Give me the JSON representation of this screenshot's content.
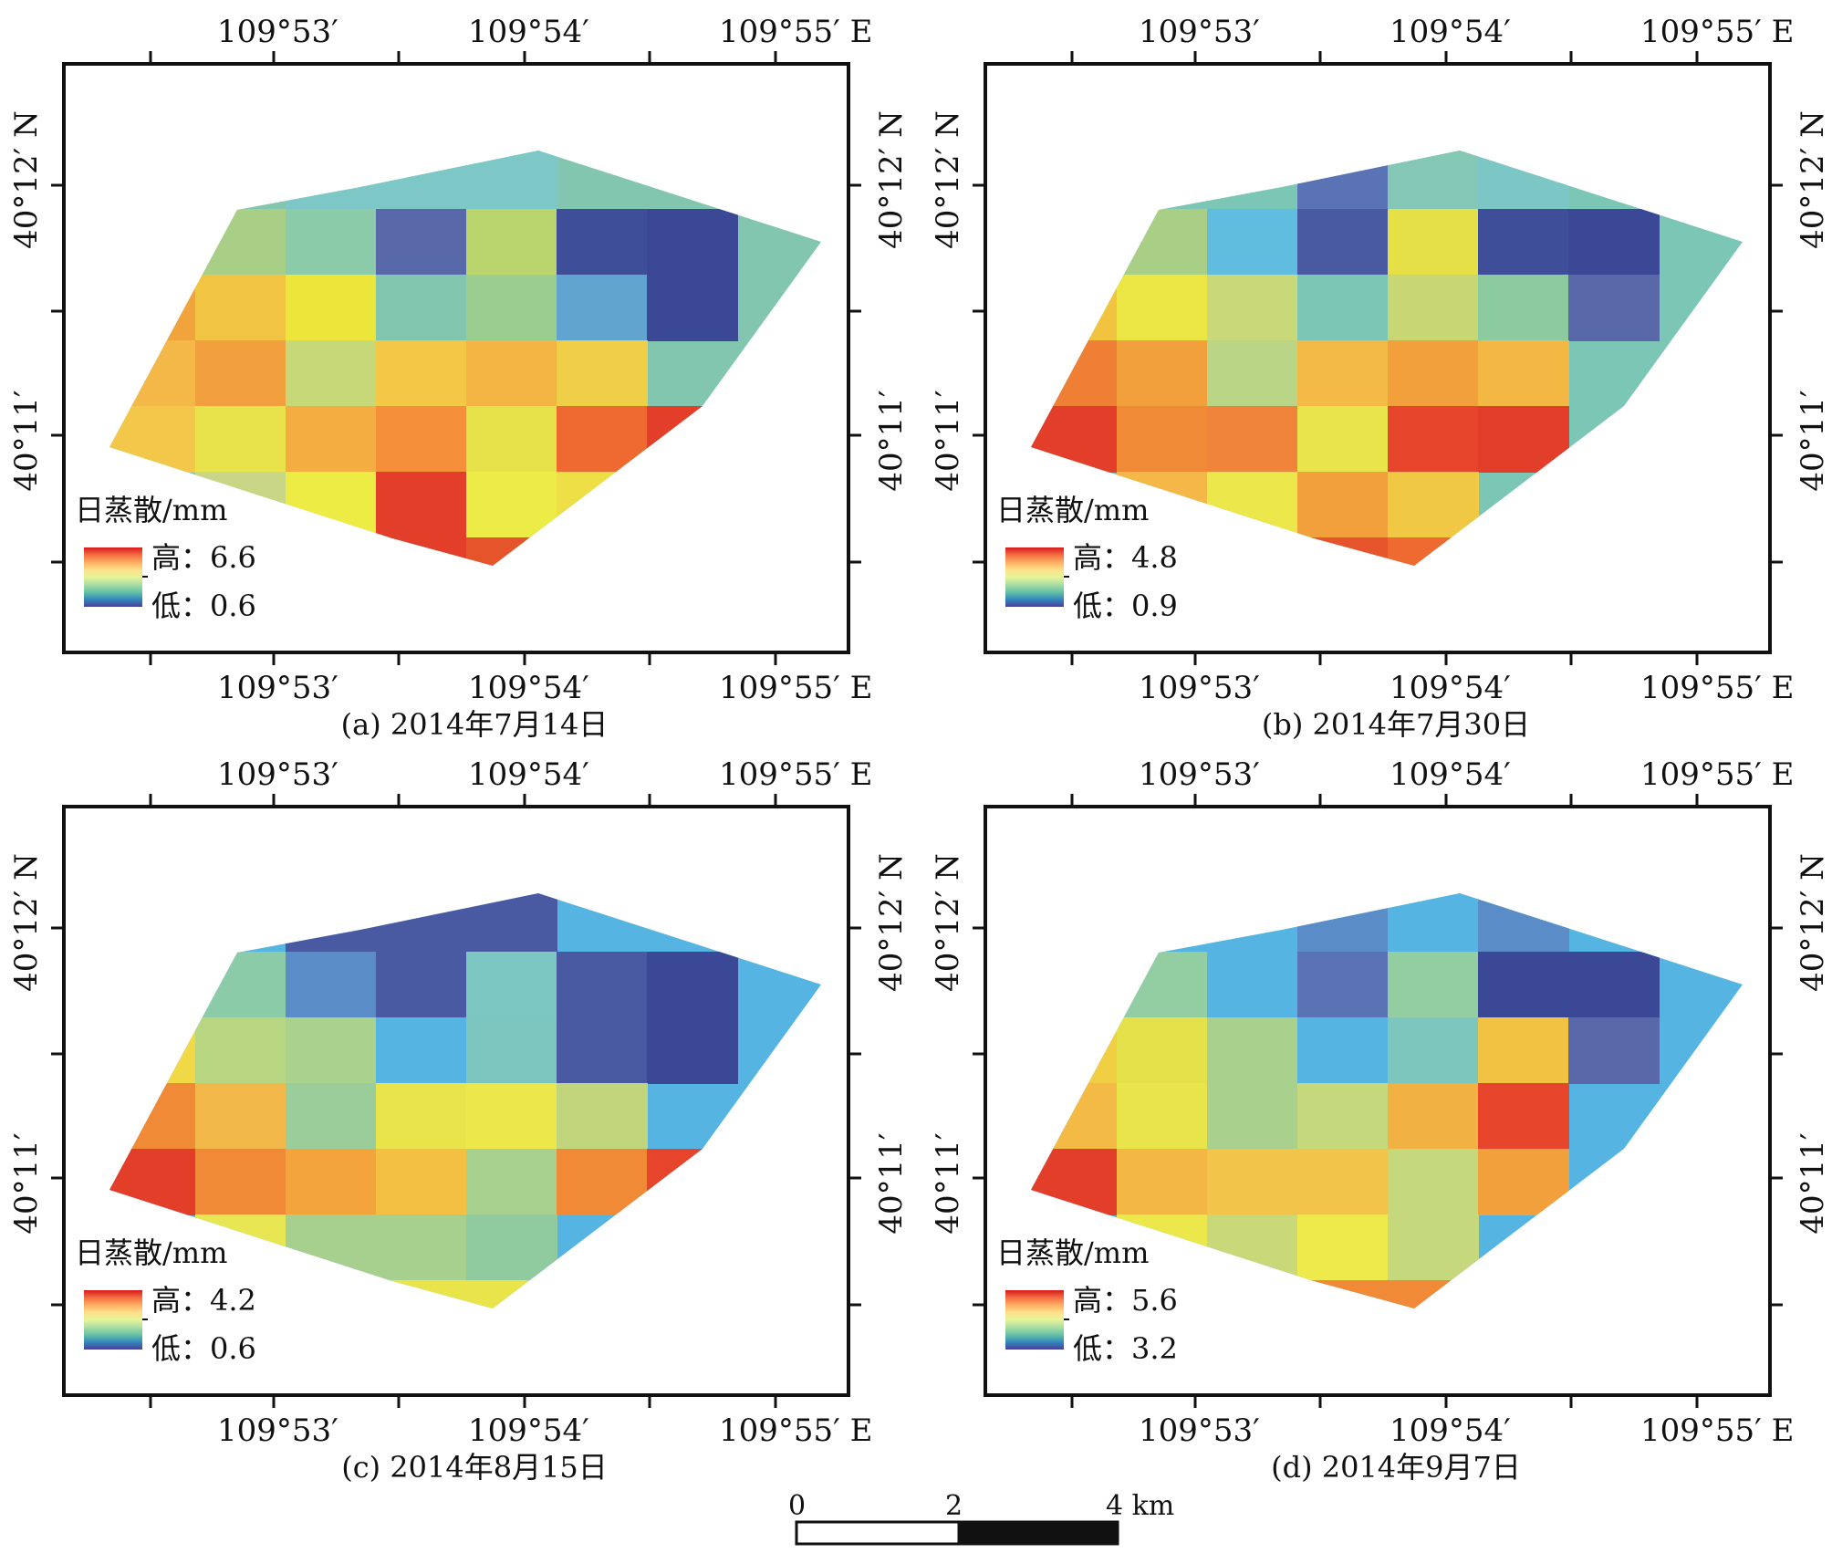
{
  "figure": {
    "panels": [
      {
        "id": "a",
        "caption": "(a) 2014年7月14日",
        "legend": {
          "title": "日蒸散/mm",
          "high": "高：6.6",
          "low": "低：0.6"
        },
        "grid": [
          [
            null,
            null,
            null,
            null,
            null,
            null,
            null,
            null
          ],
          [
            null,
            null,
            "#7dc7c6",
            "#7dc7c6",
            "#7dc7c6",
            null,
            null,
            null
          ],
          [
            "#e8e03a",
            "#a9cf86",
            "#8ccbaa",
            "#5868a8",
            "#bad46e",
            "#3f4e98",
            "#3b4896",
            null
          ],
          [
            "#f1a33c",
            "#f1c443",
            "#ece63a",
            "#82c6b0",
            "#9acd8e",
            "#62a4d0",
            "#3b4896",
            null
          ],
          [
            "#f3b848",
            "#f29f3e",
            "#c6d877",
            "#f3c846",
            "#f3b444",
            "#f0cf48",
            null,
            null
          ],
          [
            "#f3c84a",
            "#e8e34a",
            "#f3ad41",
            "#f39039",
            "#e8e24a",
            "#ef6a30",
            "#e23e2a",
            null
          ],
          [
            null,
            "#c9d685",
            "#edec45",
            "#e23e2a",
            "#edeb45",
            "#eddf45",
            null,
            null
          ],
          [
            null,
            null,
            null,
            "#e23e2a",
            "#e6542c",
            null,
            null,
            null
          ]
        ],
        "x_ticks": [
          "109°53′",
          "109°54′",
          "109°55′  E"
        ],
        "y_ticks": [
          "40°11′",
          "40°12′ N"
        ]
      },
      {
        "id": "b",
        "caption": "(b) 2014年7月30日",
        "legend": {
          "title": "日蒸散/mm",
          "high": "高：4.8",
          "low": "低：0.9"
        },
        "grid": [
          [
            null,
            null,
            null,
            null,
            null,
            null,
            null,
            null
          ],
          [
            null,
            null,
            null,
            "#5a73b4",
            "#84c7b4",
            "#7dc6c6",
            null,
            null
          ],
          [
            "#f1b843",
            "#a9cf86",
            "#60bde0",
            "#4a5aa2",
            "#e4e046",
            "#3f4e98",
            "#3b4896",
            null
          ],
          [
            "#f2c33f",
            "#ebe643",
            "#c9d878",
            "#7cc6b6",
            "#c8d773",
            "#8ccba0",
            "#5868a8",
            null
          ],
          [
            "#ef7f34",
            "#f2a03b",
            "#b9d585",
            "#f3bb45",
            "#f2a03b",
            "#f3b744",
            null,
            null
          ],
          [
            "#e23e2a",
            "#f08a37",
            "#f0843a",
            "#e8e44a",
            "#e6452c",
            "#e23e2a",
            null,
            null
          ],
          [
            null,
            "#f5b848",
            "#ece84b",
            "#f2a03b",
            "#f0c843",
            null,
            null,
            null
          ],
          [
            null,
            null,
            null,
            "#e6542c",
            "#ef6a30",
            null,
            null,
            null
          ]
        ],
        "x_ticks": [
          "109°53′",
          "109°54′",
          "109°55′  E"
        ],
        "y_ticks": [
          "40°11′",
          "40°12′ N"
        ]
      },
      {
        "id": "c",
        "caption": "(c) 2014年8月15日",
        "legend": {
          "title": "日蒸散/mm",
          "high": "高：4.2",
          "low": "低：0.6"
        },
        "grid": [
          [
            null,
            null,
            null,
            null,
            null,
            null,
            null,
            null
          ],
          [
            null,
            null,
            "#4a5aa2",
            "#4a5aa2",
            "#4a5aa2",
            null,
            null,
            null
          ],
          [
            "#b5d68a",
            "#8ccba8",
            "#5a8dc8",
            "#4a5aa2",
            "#7dc7c2",
            "#4a5aa2",
            "#3b4896",
            null
          ],
          [
            "#f0d847",
            "#b8d581",
            "#abd28d",
            "#55b4e2",
            "#7cc6bf",
            "#4a5aa2",
            "#3b4896",
            null
          ],
          [
            "#f08a37",
            "#f2b84a",
            "#9acd9a",
            "#e8e44a",
            "#ece84b",
            "#c0d57c",
            null,
            null
          ],
          [
            "#e23e2a",
            "#f08a37",
            "#f3a43c",
            "#f3c043",
            "#a8d08e",
            "#f08a37",
            "#e6452c",
            null
          ],
          [
            null,
            "#e9e653",
            "#a7d08e",
            "#a7d08e",
            "#90cb9f",
            null,
            null,
            null
          ],
          [
            null,
            null,
            null,
            "#e8e44a",
            "#e8e44a",
            null,
            null,
            null
          ]
        ],
        "x_ticks": [
          "109°53′",
          "109°54′",
          "109°55′  E"
        ],
        "y_ticks": [
          "40°11′",
          "40°12′ N"
        ]
      },
      {
        "id": "d",
        "caption": "(d) 2014年9月7日",
        "legend": {
          "title": "日蒸散/mm",
          "high": "高：5.6",
          "low": "低：3.2"
        },
        "grid": [
          [
            null,
            null,
            null,
            null,
            null,
            null,
            null,
            null
          ],
          [
            null,
            null,
            null,
            "#5a8dc8",
            "#55b4e2",
            "#5a8dc8",
            null,
            null
          ],
          [
            "#b8d57d",
            "#93cda2",
            "#55b4e2",
            "#5a73b4",
            "#93cda2",
            "#3b4896",
            "#3b4896",
            null
          ],
          [
            "#f0cf43",
            "#e4e14a",
            "#a9d08c",
            "#55b4e2",
            "#7dc6bd",
            "#f2c243",
            "#5868a8",
            null
          ],
          [
            "#f3bb45",
            "#e8e44a",
            "#a9d08c",
            "#c6d87c",
            "#f2b143",
            "#e6452c",
            null,
            null
          ],
          [
            "#e23e2a",
            "#f3b744",
            "#f3c44a",
            "#f3c44a",
            "#c6d87c",
            "#f2a03b",
            null,
            null
          ],
          [
            null,
            "#ece84b",
            "#c9d878",
            "#eeea4b",
            "#c6d87c",
            null,
            null,
            null
          ],
          [
            null,
            null,
            null,
            "#f08a37",
            "#f08a37",
            null,
            null,
            null
          ]
        ],
        "x_ticks": [
          "109°53′",
          "109°54′",
          "109°55′  E"
        ],
        "y_ticks": [
          "40°11′",
          "40°12′ N"
        ]
      }
    ],
    "colors": {
      "ramp": [
        "#d7191c",
        "#f46d43",
        "#fdae61",
        "#fee08b",
        "#e6f598",
        "#abdda4",
        "#66c2a5",
        "#3288bd",
        "#4a3f98"
      ]
    },
    "scale_bar": {
      "labels": [
        "0",
        "2",
        "4 km"
      ]
    }
  }
}
